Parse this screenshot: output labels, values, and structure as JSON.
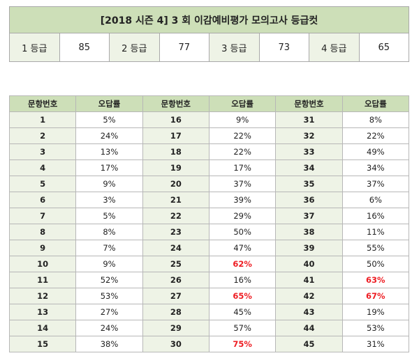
{
  "title": "[2018 시즌 4] 3 회 이감예비평가 모의고사 등급컷",
  "grades": [
    {
      "label": "1 등급",
      "value": "85"
    },
    {
      "label": "2 등급",
      "value": "77"
    },
    {
      "label": "3 등급",
      "value": "73"
    },
    {
      "label": "4 등급",
      "value": "65"
    }
  ],
  "headers": {
    "number": "문항번호",
    "rate": "오답률"
  },
  "rows": [
    [
      {
        "n": "1",
        "r": "5%",
        "hi": false
      },
      {
        "n": "16",
        "r": "9%",
        "hi": false
      },
      {
        "n": "31",
        "r": "8%",
        "hi": false
      }
    ],
    [
      {
        "n": "2",
        "r": "24%",
        "hi": false
      },
      {
        "n": "17",
        "r": "22%",
        "hi": false
      },
      {
        "n": "32",
        "r": "22%",
        "hi": false
      }
    ],
    [
      {
        "n": "3",
        "r": "13%",
        "hi": false
      },
      {
        "n": "18",
        "r": "22%",
        "hi": false
      },
      {
        "n": "33",
        "r": "49%",
        "hi": false
      }
    ],
    [
      {
        "n": "4",
        "r": "17%",
        "hi": false
      },
      {
        "n": "19",
        "r": "17%",
        "hi": false
      },
      {
        "n": "34",
        "r": "34%",
        "hi": false
      }
    ],
    [
      {
        "n": "5",
        "r": "9%",
        "hi": false
      },
      {
        "n": "20",
        "r": "37%",
        "hi": false
      },
      {
        "n": "35",
        "r": "37%",
        "hi": false
      }
    ],
    [
      {
        "n": "6",
        "r": "3%",
        "hi": false
      },
      {
        "n": "21",
        "r": "39%",
        "hi": false
      },
      {
        "n": "36",
        "r": "6%",
        "hi": false
      }
    ],
    [
      {
        "n": "7",
        "r": "5%",
        "hi": false
      },
      {
        "n": "22",
        "r": "29%",
        "hi": false
      },
      {
        "n": "37",
        "r": "16%",
        "hi": false
      }
    ],
    [
      {
        "n": "8",
        "r": "8%",
        "hi": false
      },
      {
        "n": "23",
        "r": "50%",
        "hi": false
      },
      {
        "n": "38",
        "r": "11%",
        "hi": false
      }
    ],
    [
      {
        "n": "9",
        "r": "7%",
        "hi": false
      },
      {
        "n": "24",
        "r": "47%",
        "hi": false
      },
      {
        "n": "39",
        "r": "55%",
        "hi": false
      }
    ],
    [
      {
        "n": "10",
        "r": "9%",
        "hi": false
      },
      {
        "n": "25",
        "r": "62%",
        "hi": true
      },
      {
        "n": "40",
        "r": "50%",
        "hi": false
      }
    ],
    [
      {
        "n": "11",
        "r": "52%",
        "hi": false
      },
      {
        "n": "26",
        "r": "16%",
        "hi": false
      },
      {
        "n": "41",
        "r": "63%",
        "hi": true
      }
    ],
    [
      {
        "n": "12",
        "r": "53%",
        "hi": false
      },
      {
        "n": "27",
        "r": "65%",
        "hi": true
      },
      {
        "n": "42",
        "r": "67%",
        "hi": true
      }
    ],
    [
      {
        "n": "13",
        "r": "27%",
        "hi": false
      },
      {
        "n": "28",
        "r": "45%",
        "hi": false
      },
      {
        "n": "43",
        "r": "19%",
        "hi": false
      }
    ],
    [
      {
        "n": "14",
        "r": "24%",
        "hi": false
      },
      {
        "n": "29",
        "r": "57%",
        "hi": false
      },
      {
        "n": "44",
        "r": "53%",
        "hi": false
      }
    ],
    [
      {
        "n": "15",
        "r": "38%",
        "hi": false
      },
      {
        "n": "30",
        "r": "75%",
        "hi": true
      },
      {
        "n": "45",
        "r": "31%",
        "hi": false
      }
    ]
  ]
}
